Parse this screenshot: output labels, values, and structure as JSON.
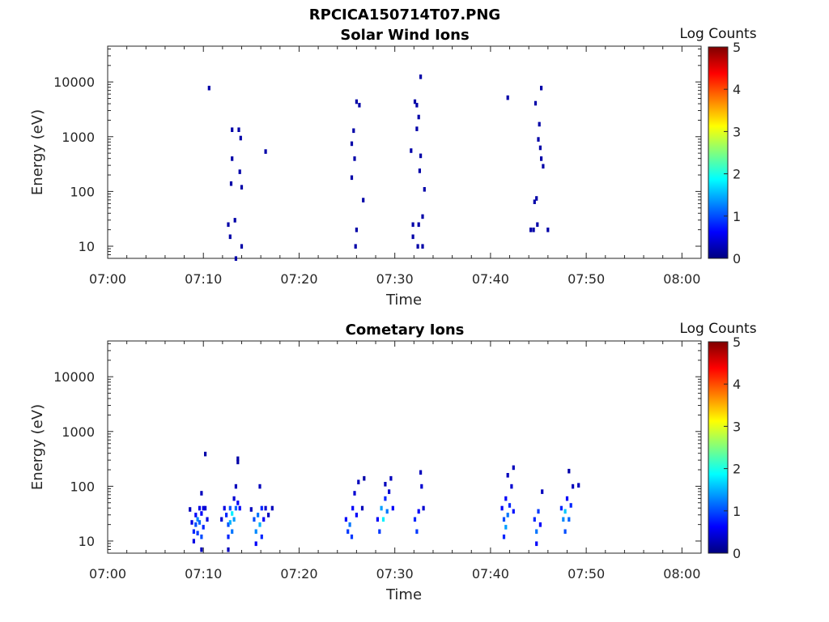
{
  "figure": {
    "title": "RPCICA150714T07.PNG"
  },
  "colormap_stops": [
    "#00007f",
    "#0000ff",
    "#007fff",
    "#00ffff",
    "#7fff7f",
    "#ffff00",
    "#ff7f00",
    "#ff0000",
    "#7f0000"
  ],
  "chart_data": [
    {
      "type": "heatmap",
      "title": "Solar Wind Ions",
      "xlabel": "Time",
      "ylabel": "Energy (eV)",
      "x_unit": "minutes after 07:00",
      "xlim": [
        0,
        62
      ],
      "ylim": [
        6,
        45000
      ],
      "yscale": "log",
      "x_ticks": [
        0,
        10,
        20,
        30,
        40,
        50,
        60
      ],
      "x_tick_labels": [
        "07:00",
        "07:10",
        "07:20",
        "07:30",
        "07:40",
        "07:50",
        "08:00"
      ],
      "y_ticks": [
        10,
        100,
        1000,
        10000
      ],
      "y_tick_labels": [
        "10",
        "100",
        "1000",
        "10000"
      ],
      "colorbar": {
        "label": "Log Counts",
        "range": [
          0,
          5
        ],
        "ticks": [
          "0",
          "1",
          "2",
          "3",
          "4",
          "5"
        ]
      },
      "cells": [
        [
          10.6,
          7800,
          0.2
        ],
        [
          12.6,
          25,
          0.2
        ],
        [
          12.8,
          15,
          0.2
        ],
        [
          13.0,
          400,
          0.2
        ],
        [
          13.0,
          1350,
          0.2
        ],
        [
          12.9,
          140,
          0.2
        ],
        [
          13.3,
          30,
          0.2
        ],
        [
          13.4,
          6,
          0.2
        ],
        [
          13.7,
          1350,
          0.2
        ],
        [
          13.8,
          230,
          0.2
        ],
        [
          13.9,
          950,
          0.2
        ],
        [
          14.0,
          120,
          0.2
        ],
        [
          14.0,
          10,
          0.2
        ],
        [
          16.5,
          540,
          0.2
        ],
        [
          25.5,
          180,
          0.2
        ],
        [
          25.5,
          750,
          0.2
        ],
        [
          25.7,
          1300,
          0.2
        ],
        [
          25.8,
          400,
          0.2
        ],
        [
          25.9,
          10,
          0.2
        ],
        [
          26.0,
          4400,
          0.2
        ],
        [
          26.0,
          20,
          0.2
        ],
        [
          26.3,
          3800,
          0.2
        ],
        [
          26.7,
          70,
          0.2
        ],
        [
          31.7,
          560,
          0.2
        ],
        [
          31.9,
          25,
          0.2
        ],
        [
          31.9,
          15,
          0.2
        ],
        [
          32.1,
          4400,
          0.2
        ],
        [
          32.3,
          3800,
          0.2
        ],
        [
          32.3,
          1400,
          0.2
        ],
        [
          32.4,
          10,
          0.2
        ],
        [
          32.5,
          2300,
          0.2
        ],
        [
          32.5,
          25,
          0.2
        ],
        [
          32.6,
          240,
          0.2
        ],
        [
          32.7,
          12500,
          0.2
        ],
        [
          32.7,
          450,
          0.2
        ],
        [
          32.9,
          10,
          0.2
        ],
        [
          32.9,
          35,
          0.2
        ],
        [
          33.1,
          110,
          0.2
        ],
        [
          41.8,
          5200,
          0.2
        ],
        [
          44.2,
          20,
          0.2
        ],
        [
          44.5,
          20,
          0.2
        ],
        [
          44.6,
          65,
          0.2
        ],
        [
          44.7,
          4100,
          0.2
        ],
        [
          44.8,
          75,
          0.2
        ],
        [
          44.9,
          25,
          0.2
        ],
        [
          45.0,
          900,
          0.2
        ],
        [
          45.1,
          1700,
          0.2
        ],
        [
          45.2,
          630,
          0.2
        ],
        [
          45.3,
          400,
          0.2
        ],
        [
          45.3,
          7800,
          0.2
        ],
        [
          45.5,
          290,
          0.2
        ],
        [
          46.0,
          20,
          0.2
        ]
      ]
    },
    {
      "type": "heatmap",
      "title": "Cometary Ions",
      "xlabel": "Time",
      "ylabel": "Energy (eV)",
      "x_unit": "minutes after 07:00",
      "xlim": [
        0,
        62
      ],
      "ylim": [
        6,
        45000
      ],
      "yscale": "log",
      "x_ticks": [
        0,
        10,
        20,
        30,
        40,
        50,
        60
      ],
      "x_tick_labels": [
        "07:00",
        "07:10",
        "07:20",
        "07:30",
        "07:40",
        "07:50",
        "08:00"
      ],
      "y_ticks": [
        10,
        100,
        1000,
        10000
      ],
      "y_tick_labels": [
        "10",
        "100",
        "1000",
        "10000"
      ],
      "colorbar": {
        "label": "Log Counts",
        "range": [
          0,
          5
        ],
        "ticks": [
          "0",
          "1",
          "2",
          "3",
          "4",
          "5"
        ]
      },
      "cells": [
        [
          8.6,
          38,
          0.3
        ],
        [
          8.8,
          22,
          0.5
        ],
        [
          9.0,
          15,
          0.8
        ],
        [
          9.0,
          10,
          0.5
        ],
        [
          9.2,
          30,
          0.6
        ],
        [
          9.2,
          20,
          1.0
        ],
        [
          9.4,
          25,
          1.3
        ],
        [
          9.4,
          14,
          0.9
        ],
        [
          9.6,
          40,
          0.5
        ],
        [
          9.6,
          22,
          1.1
        ],
        [
          9.8,
          75,
          0.3
        ],
        [
          9.8,
          32,
          0.6
        ],
        [
          9.8,
          12,
          1.0
        ],
        [
          9.8,
          7,
          0.3
        ],
        [
          10.0,
          40,
          0.5
        ],
        [
          10.0,
          18,
          0.8
        ],
        [
          10.2,
          40,
          0.4
        ],
        [
          10.2,
          390,
          0.2
        ],
        [
          10.4,
          25,
          0.5
        ],
        [
          11.9,
          25,
          0.4
        ],
        [
          12.2,
          40,
          0.5
        ],
        [
          12.4,
          30,
          0.8
        ],
        [
          12.6,
          20,
          1.0
        ],
        [
          12.6,
          12,
          0.8
        ],
        [
          12.6,
          7,
          0.3
        ],
        [
          12.8,
          40,
          1.0
        ],
        [
          12.8,
          22,
          1.5
        ],
        [
          13.0,
          32,
          1.8
        ],
        [
          13.0,
          15,
          1.2
        ],
        [
          13.2,
          60,
          0.4
        ],
        [
          13.2,
          25,
          1.4
        ],
        [
          13.4,
          100,
          0.3
        ],
        [
          13.4,
          40,
          1.1
        ],
        [
          13.6,
          320,
          0.2
        ],
        [
          13.6,
          50,
          0.6
        ],
        [
          13.6,
          280,
          0.2
        ],
        [
          13.8,
          40,
          0.6
        ],
        [
          15.0,
          38,
          0.3
        ],
        [
          15.3,
          25,
          1.0
        ],
        [
          15.5,
          15,
          1.3
        ],
        [
          15.5,
          9,
          0.6
        ],
        [
          15.7,
          30,
          1.2
        ],
        [
          15.9,
          100,
          0.3
        ],
        [
          15.9,
          20,
          1.5
        ],
        [
          16.1,
          40,
          0.8
        ],
        [
          16.1,
          12,
          0.8
        ],
        [
          16.3,
          25,
          0.6
        ],
        [
          16.5,
          40,
          0.4
        ],
        [
          16.8,
          30,
          0.3
        ],
        [
          17.2,
          40,
          0.3
        ],
        [
          24.9,
          25,
          0.6
        ],
        [
          25.1,
          15,
          0.9
        ],
        [
          25.3,
          20,
          1.2
        ],
        [
          25.5,
          12,
          0.9
        ],
        [
          25.6,
          40,
          0.6
        ],
        [
          25.8,
          75,
          0.4
        ],
        [
          26.0,
          30,
          0.6
        ],
        [
          26.2,
          120,
          0.3
        ],
        [
          26.6,
          40,
          0.3
        ],
        [
          26.8,
          140,
          0.2
        ],
        [
          28.2,
          25,
          0.6
        ],
        [
          28.4,
          15,
          0.9
        ],
        [
          28.6,
          40,
          1.4
        ],
        [
          28.8,
          25,
          1.8
        ],
        [
          29.0,
          60,
          0.8
        ],
        [
          29.0,
          110,
          0.3
        ],
        [
          29.2,
          35,
          1.2
        ],
        [
          29.4,
          80,
          0.4
        ],
        [
          29.6,
          140,
          0.3
        ],
        [
          29.8,
          40,
          0.6
        ],
        [
          32.1,
          25,
          0.8
        ],
        [
          32.3,
          15,
          0.9
        ],
        [
          32.5,
          35,
          0.6
        ],
        [
          32.7,
          180,
          0.3
        ],
        [
          32.8,
          100,
          0.4
        ],
        [
          33.0,
          40,
          0.4
        ],
        [
          41.2,
          40,
          0.6
        ],
        [
          41.4,
          25,
          1.0
        ],
        [
          41.4,
          12,
          0.8
        ],
        [
          41.6,
          60,
          0.6
        ],
        [
          41.6,
          18,
          1.4
        ],
        [
          41.8,
          30,
          1.2
        ],
        [
          41.8,
          160,
          0.3
        ],
        [
          42.0,
          45,
          0.8
        ],
        [
          42.2,
          100,
          0.4
        ],
        [
          42.4,
          35,
          0.7
        ],
        [
          42.4,
          220,
          0.3
        ],
        [
          44.6,
          25,
          0.8
        ],
        [
          44.8,
          15,
          1.2
        ],
        [
          44.8,
          9,
          0.6
        ],
        [
          45.0,
          35,
          0.9
        ],
        [
          45.2,
          20,
          0.6
        ],
        [
          45.4,
          80,
          0.3
        ],
        [
          47.4,
          40,
          0.8
        ],
        [
          47.6,
          25,
          1.3
        ],
        [
          47.8,
          15,
          1.0
        ],
        [
          47.8,
          35,
          1.6
        ],
        [
          48.0,
          60,
          0.6
        ],
        [
          48.2,
          25,
          1.1
        ],
        [
          48.2,
          190,
          0.2
        ],
        [
          48.4,
          45,
          0.8
        ],
        [
          48.6,
          100,
          0.3
        ],
        [
          49.2,
          105,
          0.3
        ]
      ]
    }
  ]
}
